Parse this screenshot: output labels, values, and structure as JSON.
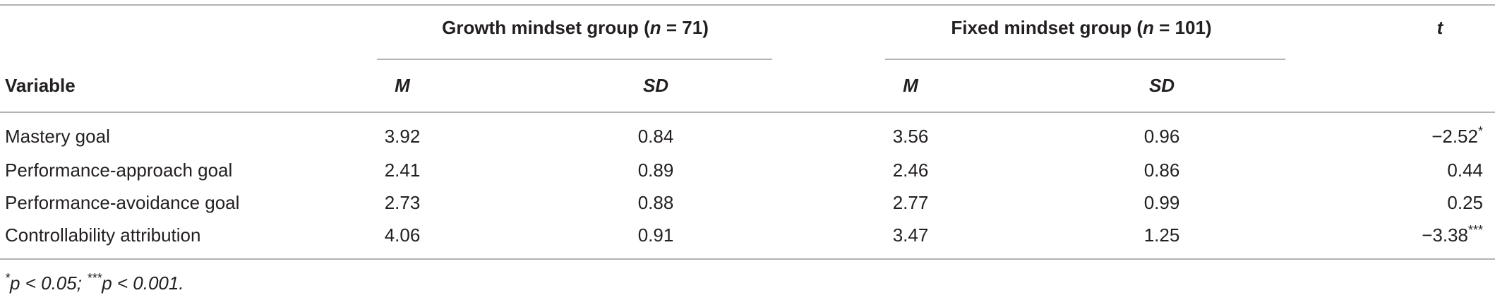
{
  "table": {
    "group_headers": [
      [
        "Growth mindset group (",
        "n",
        " = 71)"
      ],
      [
        "Fixed mindset group (",
        "n",
        " = 101)"
      ]
    ],
    "t_header": "t",
    "columns": [
      "Variable",
      "M",
      "SD",
      "M",
      "SD"
    ],
    "rows": [
      {
        "variable": "Mastery goal",
        "cells": [
          "3.92",
          "0.84",
          "3.56",
          "0.96"
        ],
        "t": "−2.52",
        "sig": "*"
      },
      {
        "variable": "Performance-approach goal",
        "cells": [
          "2.41",
          "0.89",
          "2.46",
          "0.86"
        ],
        "t": "0.44",
        "sig": ""
      },
      {
        "variable": "Performance-avoidance goal",
        "cells": [
          "2.73",
          "0.88",
          "2.77",
          "0.99"
        ],
        "t": "0.25",
        "sig": ""
      },
      {
        "variable": "Controllability attribution",
        "cells": [
          "4.06",
          "0.91",
          "3.47",
          "1.25"
        ],
        "t": "−3.38",
        "sig": "***"
      }
    ],
    "footnote": [
      "*",
      "p < 0.05; ",
      "***",
      "p < 0.001."
    ]
  }
}
